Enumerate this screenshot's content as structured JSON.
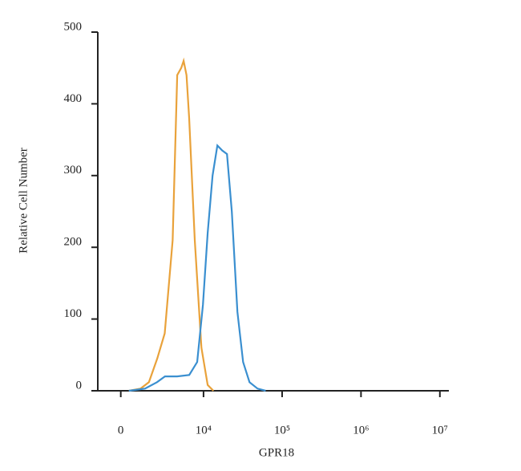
{
  "chart_data": {
    "type": "line",
    "xlabel": "GPR18",
    "ylabel": "Relative Cell Number",
    "xscale": "biexponential",
    "xlim": [
      -1300,
      13000000
    ],
    "xticks": [
      0,
      {
        "value": 10000,
        "label": "10⁴"
      },
      {
        "value": 100000,
        "label": "10⁵"
      },
      {
        "value": 1000000,
        "label": "10⁶"
      },
      {
        "value": 10000000,
        "label": "10⁷"
      }
    ],
    "ylim": [
      0,
      500
    ],
    "yticks": [
      0,
      100,
      200,
      300,
      400,
      500
    ],
    "series": [
      {
        "color": "#e9a23b",
        "x": [
          430,
          1100,
          1650,
          2300,
          3000,
          3900,
          4500,
          5100,
          5500,
          6000,
          6500,
          7700,
          9400,
          11300,
          13400
        ],
        "values": [
          0,
          3,
          12,
          45,
          80,
          210,
          440,
          450,
          460,
          440,
          380,
          210,
          60,
          8,
          0
        ]
      },
      {
        "color": "#3a8fd0",
        "x": [
          430,
          1380,
          2280,
          3020,
          4480,
          6520,
          8280,
          9820,
          11300,
          13050,
          15050,
          17340,
          19950,
          22990,
          27100,
          32000,
          38600,
          48800,
          61700
        ],
        "values": [
          0,
          3,
          12,
          20,
          20,
          22,
          40,
          120,
          220,
          300,
          342,
          335,
          330,
          250,
          110,
          40,
          12,
          3,
          0
        ]
      }
    ]
  }
}
